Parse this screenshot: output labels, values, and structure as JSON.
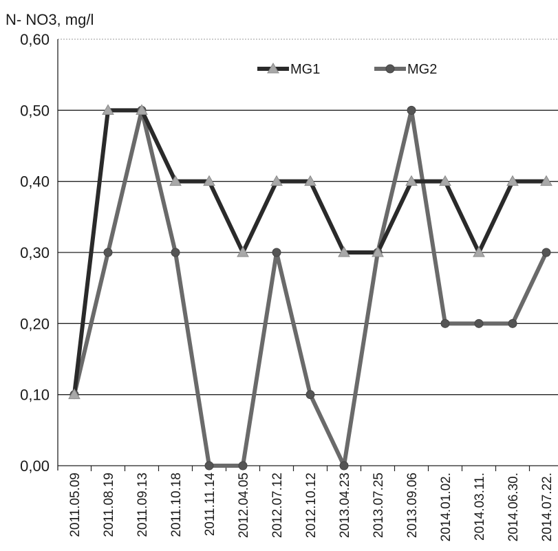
{
  "chart_data": {
    "type": "line",
    "ylabel": "N- NO3, mg/l",
    "xlabel": "",
    "ylim": [
      0,
      0.6
    ],
    "yticks": [
      "0,00",
      "0,10",
      "0,20",
      "0,30",
      "0,40",
      "0,50",
      "0,60"
    ],
    "grid": true,
    "legend_position": "top-center",
    "categories": [
      "2011.05.09",
      "2011.08.19",
      "2011.09.13",
      "2011.10.18",
      "2011.11.14",
      "2012.04.05",
      "2012.07.12",
      "2012.10.12",
      "2013.04.23",
      "2013.07.25",
      "2013.09.06",
      "2014.01.02.",
      "2014.03.11.",
      "2014.06.30.",
      "2014.07.22."
    ],
    "series": [
      {
        "name": "MG1",
        "marker": "triangle",
        "line_color": "#2a2a2a",
        "marker_color": "#a8a8a8",
        "values": [
          0.1,
          0.5,
          0.5,
          0.4,
          0.4,
          0.3,
          0.4,
          0.4,
          0.3,
          0.3,
          0.4,
          0.4,
          0.3,
          0.4,
          0.4
        ]
      },
      {
        "name": "MG2",
        "marker": "circle",
        "line_color": "#6a6a6a",
        "marker_color": "#555555",
        "values": [
          0.1,
          0.3,
          0.5,
          0.3,
          0.0,
          0.0,
          0.3,
          0.1,
          0.0,
          0.3,
          0.5,
          0.2,
          0.2,
          0.2,
          0.3
        ]
      }
    ]
  }
}
